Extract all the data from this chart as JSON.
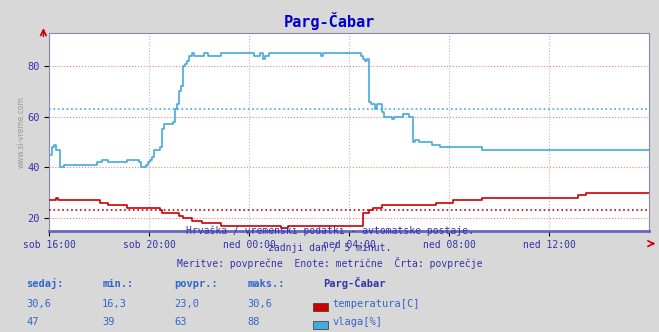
{
  "title": "Parg-Čabar",
  "title_color": "#0000cc",
  "bg_color": "#d8d8d8",
  "plot_bg_color": "#ffffff",
  "grid_color_red": "#dd8888",
  "grid_color_gray": "#bbbbbb",
  "watermark": "www.si-vreme.com",
  "xlabel_ticks": [
    "sob 16:00",
    "sob 20:00",
    "ned 00:00",
    "ned 04:00",
    "ned 08:00",
    "ned 12:00"
  ],
  "ylim": [
    15,
    93
  ],
  "yticks": [
    20,
    40,
    60,
    80
  ],
  "avg_line_temp": 23.0,
  "avg_line_humidity": 63.0,
  "temp_color": "#cc0000",
  "humidity_color": "#44aadd",
  "footer_line1": "Hrvaška / vremenski podatki - avtomatske postaje.",
  "footer_line2": "zadnji dan / 5 minut.",
  "footer_line3": "Meritve: povprečne  Enote: metrične  Črta: povprečje",
  "legend_station": "Parg-Čabar",
  "legend_items": [
    {
      "label": "temperatura[C]",
      "color": "#cc0000"
    },
    {
      "label": "vlaga[%]",
      "color": "#44aadd"
    }
  ],
  "stats_headers": [
    "sedaj:",
    "min.:",
    "povpr.:",
    "maks.:"
  ],
  "stats_temp": [
    "30,6",
    "16,3",
    "23,0",
    "30,6"
  ],
  "stats_humidity": [
    "47",
    "39",
    "63",
    "88"
  ],
  "num_points": 288,
  "hum_data": [
    45,
    48,
    49,
    47,
    47,
    40,
    40,
    41,
    41,
    41,
    41,
    41,
    41,
    41,
    41,
    41,
    41,
    41,
    41,
    41,
    41,
    41,
    41,
    42,
    42,
    43,
    43,
    43,
    42,
    42,
    42,
    42,
    42,
    42,
    42,
    42,
    42,
    43,
    43,
    43,
    43,
    43,
    43,
    42,
    40,
    40,
    41,
    42,
    43,
    44,
    47,
    47,
    47,
    48,
    55,
    57,
    57,
    57,
    57,
    58,
    63,
    65,
    70,
    72,
    80,
    81,
    82,
    84,
    85,
    84,
    84,
    84,
    84,
    84,
    85,
    85,
    84,
    84,
    84,
    84,
    84,
    84,
    85,
    85,
    85,
    85,
    85,
    85,
    85,
    85,
    85,
    85,
    85,
    85,
    85,
    85,
    85,
    85,
    84,
    84,
    84,
    85,
    83,
    84,
    84,
    85,
    85,
    85,
    85,
    85,
    85,
    85,
    85,
    85,
    85,
    85,
    85,
    85,
    85,
    85,
    85,
    85,
    85,
    85,
    85,
    85,
    85,
    85,
    85,
    85,
    84,
    85,
    85,
    85,
    85,
    85,
    85,
    85,
    85,
    85,
    85,
    85,
    85,
    85,
    85,
    85,
    85,
    85,
    85,
    84,
    83,
    82,
    83,
    66,
    65,
    65,
    63,
    65,
    65,
    62,
    60,
    60,
    60,
    60,
    59,
    60,
    60,
    60,
    60,
    61,
    61,
    61,
    60,
    60,
    50,
    51,
    51,
    50,
    50,
    50,
    50,
    50,
    50,
    49,
    49,
    49,
    49,
    48,
    48,
    48,
    48,
    48,
    48,
    48,
    48,
    48,
    48,
    48,
    48,
    48,
    48,
    48,
    48,
    48,
    48,
    48,
    48,
    47,
    47,
    47,
    47,
    47,
    47,
    47,
    47,
    47,
    47,
    47,
    47,
    47,
    47,
    47,
    47,
    47,
    47,
    47,
    47,
    47,
    47,
    47,
    47,
    47,
    47,
    47,
    47,
    47,
    47,
    47,
    47,
    47,
    47,
    47,
    47,
    47,
    47,
    47,
    47,
    47,
    47,
    47,
    47,
    47,
    47,
    47,
    47,
    47,
    47,
    47,
    47,
    47,
    47,
    47,
    47,
    47,
    47,
    47,
    47,
    47,
    47,
    47,
    47,
    47,
    47,
    47,
    47,
    47,
    47,
    47,
    47,
    47,
    47,
    47,
    47,
    47,
    47,
    47,
    47,
    47
  ],
  "temp_data": [
    27,
    27,
    27,
    28,
    27,
    27,
    27,
    27,
    27,
    27,
    27,
    27,
    27,
    27,
    27,
    27,
    27,
    27,
    27,
    27,
    27,
    27,
    27,
    27,
    26,
    26,
    26,
    26,
    25,
    25,
    25,
    25,
    25,
    25,
    25,
    25,
    25,
    24,
    24,
    24,
    24,
    24,
    24,
    24,
    24,
    24,
    24,
    24,
    24,
    24,
    24,
    24,
    24,
    23,
    22,
    22,
    22,
    22,
    22,
    22,
    22,
    22,
    21,
    21,
    20,
    20,
    20,
    20,
    19,
    19,
    19,
    19,
    19,
    18,
    18,
    18,
    18,
    18,
    18,
    18,
    18,
    18,
    17,
    17,
    17,
    17,
    17,
    17,
    17,
    17,
    17,
    17,
    17,
    17,
    17,
    17,
    17,
    17,
    17,
    17,
    17,
    17,
    17,
    17,
    17,
    17,
    17,
    17,
    17,
    17,
    17,
    16,
    16,
    16,
    17,
    17,
    17,
    17,
    17,
    17,
    17,
    17,
    17,
    17,
    17,
    17,
    17,
    17,
    17,
    17,
    17,
    17,
    17,
    17,
    17,
    17,
    17,
    17,
    17,
    17,
    17,
    17,
    17,
    17,
    17,
    17,
    17,
    17,
    17,
    17,
    22,
    22,
    22,
    23,
    23,
    24,
    24,
    24,
    24,
    25,
    25,
    25,
    25,
    25,
    25,
    25,
    25,
    25,
    25,
    25,
    25,
    25,
    25,
    25,
    25,
    25,
    25,
    25,
    25,
    25,
    25,
    25,
    25,
    25,
    25,
    26,
    26,
    26,
    26,
    26,
    26,
    26,
    26,
    27,
    27,
    27,
    27,
    27,
    27,
    27,
    27,
    27,
    27,
    27,
    27,
    27,
    27,
    28,
    28,
    28,
    28,
    28,
    28,
    28,
    28,
    28,
    28,
    28,
    28,
    28,
    28,
    28,
    28,
    28,
    28,
    28,
    28,
    28,
    28,
    28,
    28,
    28,
    28,
    28,
    28,
    28,
    28,
    28,
    28,
    28,
    28,
    28,
    28,
    28,
    28,
    28,
    28,
    28,
    28,
    28,
    28,
    28,
    28,
    29,
    29,
    29,
    29,
    30,
    30,
    30,
    30,
    30,
    30,
    30,
    30,
    30,
    30,
    30,
    30,
    30,
    30,
    30,
    30,
    30,
    30,
    30,
    30,
    30,
    30,
    30,
    30,
    30,
    30,
    30,
    30,
    30,
    30,
    30
  ]
}
